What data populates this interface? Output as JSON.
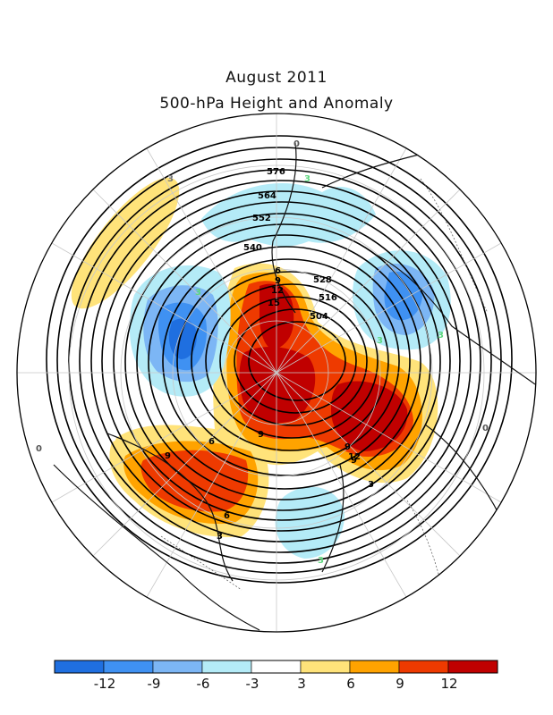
{
  "title": "August 2011",
  "subtitle": "500-hPa Height and Anomaly",
  "colorbar": {
    "bins": [
      {
        "color": "#1f6fe0"
      },
      {
        "color": "#3f91f2"
      },
      {
        "color": "#7cb6f5"
      },
      {
        "color": "#b4ebf7"
      },
      {
        "color": "#ffffff"
      },
      {
        "color": "#ffe37a"
      },
      {
        "color": "#ffa300"
      },
      {
        "color": "#ee3a00"
      },
      {
        "color": "#c00000"
      }
    ],
    "tick_labels": [
      "-12",
      "-9",
      "-6",
      "-3",
      "3",
      "6",
      "9",
      "12"
    ]
  },
  "height_contour_labels": [
    "576",
    "564",
    "552",
    "540",
    "528",
    "516",
    "504"
  ],
  "anomaly_contour_labels": [
    "3",
    "3",
    "3",
    "3",
    "6",
    "9",
    "12",
    "15",
    "9",
    "9",
    "12",
    "9",
    "9",
    "6",
    "3",
    "3",
    "6",
    "3",
    "3",
    "0",
    "0",
    "0"
  ]
}
